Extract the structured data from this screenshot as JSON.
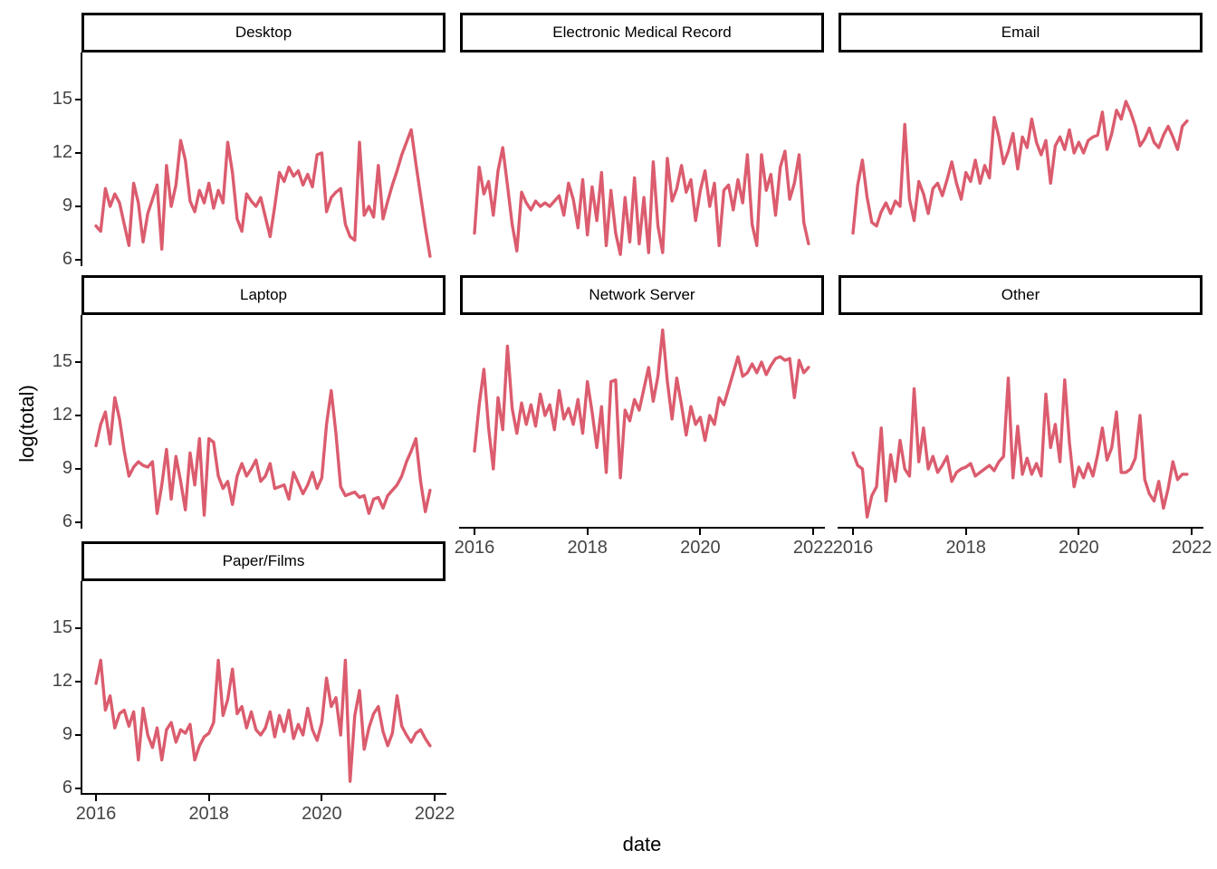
{
  "figure": {
    "y_axis_title": "log(total)",
    "x_axis_title": "date",
    "line_color": "#DB5C6E",
    "axis_text_color": "#444444",
    "axis_line_color": "#000000",
    "strip_text_color": "#000000",
    "background_color": "#FFFFFF"
  },
  "chart_data": {
    "type": "line",
    "title": "",
    "xlabel": "date",
    "ylabel": "log(total)",
    "x_start": "2016-01",
    "x_end": "2021-12",
    "x_frequency": "monthly",
    "n_points": 72,
    "x_tick_labels": [
      "2016",
      "2018",
      "2020",
      "2022"
    ],
    "y_ticks": [
      15,
      12,
      9,
      6
    ],
    "ylim": [
      5.5,
      17.6
    ],
    "grid": false,
    "legend": "none",
    "facet_layout": {
      "rows": 3,
      "cols": 3,
      "order": "row-major"
    },
    "facets": [
      {
        "label": "Desktop",
        "values": [
          7.9,
          7.6,
          10.0,
          9.0,
          9.7,
          9.2,
          8.0,
          6.8,
          10.3,
          9.2,
          7.0,
          8.6,
          9.4,
          10.2,
          6.6,
          11.3,
          9.0,
          10.2,
          12.7,
          11.6,
          9.3,
          8.7,
          9.9,
          9.2,
          10.3,
          8.9,
          9.9,
          9.2,
          12.6,
          10.9,
          8.3,
          7.6,
          9.7,
          9.3,
          9.0,
          9.5,
          8.4,
          7.3,
          9.0,
          10.9,
          10.4,
          11.2,
          10.7,
          11.0,
          10.2,
          10.8,
          10.1,
          11.9,
          12.0,
          8.7,
          9.5,
          9.8,
          10.0,
          8.0,
          7.3,
          7.1,
          12.6,
          8.5,
          9.0,
          8.4,
          11.3,
          8.3,
          9.3,
          10.2,
          11.0,
          11.9,
          12.6,
          13.3,
          11.4,
          9.6,
          7.8,
          6.2
        ]
      },
      {
        "label": "Electronic Medical Record",
        "values": [
          7.5,
          11.2,
          9.7,
          10.4,
          8.5,
          11.0,
          12.3,
          10.2,
          8.0,
          6.5,
          9.8,
          9.2,
          8.8,
          9.3,
          9.0,
          9.2,
          9.0,
          9.3,
          9.6,
          8.5,
          10.3,
          9.4,
          7.8,
          10.5,
          7.4,
          10.1,
          8.2,
          10.9,
          6.8,
          9.9,
          7.5,
          6.3,
          9.5,
          7.0,
          10.6,
          6.9,
          9.5,
          6.4,
          11.5,
          7.9,
          6.4,
          11.7,
          9.3,
          10.0,
          11.3,
          9.8,
          10.5,
          8.2,
          9.9,
          11.0,
          9.0,
          10.3,
          6.8,
          9.9,
          10.2,
          8.8,
          10.5,
          9.2,
          11.9,
          8.0,
          6.8,
          11.9,
          9.9,
          10.8,
          8.5,
          11.2,
          12.1,
          9.4,
          10.3,
          11.9,
          8.1,
          6.9
        ]
      },
      {
        "label": "Email",
        "values": [
          7.5,
          10.2,
          11.6,
          9.5,
          8.1,
          7.9,
          8.7,
          9.2,
          8.6,
          9.3,
          9.0,
          13.6,
          9.4,
          8.2,
          10.4,
          9.7,
          8.6,
          10.0,
          10.3,
          9.6,
          10.5,
          11.5,
          10.3,
          9.4,
          10.9,
          10.4,
          11.6,
          10.3,
          11.3,
          10.6,
          14.0,
          12.9,
          11.4,
          12.1,
          13.1,
          11.1,
          12.9,
          12.3,
          13.9,
          12.6,
          11.9,
          12.7,
          10.3,
          12.4,
          12.9,
          12.2,
          13.3,
          12.0,
          12.6,
          12.0,
          12.7,
          12.9,
          13.0,
          14.3,
          12.2,
          13.1,
          14.4,
          13.9,
          14.9,
          14.3,
          13.5,
          12.4,
          12.8,
          13.4,
          12.6,
          12.3,
          13.0,
          13.5,
          12.9,
          12.2,
          13.5,
          13.8
        ]
      },
      {
        "label": "Laptop",
        "values": [
          10.3,
          11.5,
          12.2,
          10.4,
          13.0,
          11.8,
          10.0,
          8.6,
          9.1,
          9.4,
          9.2,
          9.1,
          9.4,
          6.5,
          8.1,
          10.1,
          7.3,
          9.7,
          8.3,
          6.7,
          9.9,
          8.1,
          10.7,
          6.4,
          10.7,
          10.5,
          8.6,
          7.9,
          8.3,
          7.0,
          8.6,
          9.3,
          8.6,
          9.0,
          9.5,
          8.3,
          8.6,
          9.3,
          7.9,
          8.0,
          8.1,
          7.3,
          8.8,
          8.2,
          7.6,
          8.1,
          8.8,
          7.9,
          8.5,
          11.5,
          13.4,
          11.0,
          8.0,
          7.5,
          7.6,
          7.7,
          7.4,
          7.5,
          6.5,
          7.3,
          7.4,
          6.8,
          7.5,
          7.8,
          8.1,
          8.6,
          9.4,
          10.0,
          10.7,
          8.3,
          6.6,
          7.8
        ]
      },
      {
        "label": "Network Server",
        "values": [
          10.0,
          12.6,
          14.6,
          11.3,
          9.0,
          13.0,
          11.2,
          15.9,
          12.4,
          11.0,
          12.7,
          11.5,
          12.6,
          11.4,
          13.2,
          12.0,
          12.6,
          11.2,
          13.4,
          11.8,
          12.4,
          11.5,
          12.9,
          11.0,
          13.9,
          12.2,
          10.2,
          12.5,
          8.8,
          13.9,
          14.0,
          8.5,
          12.3,
          11.7,
          12.9,
          12.3,
          13.5,
          14.7,
          12.8,
          14.2,
          16.8,
          13.9,
          11.8,
          14.1,
          12.6,
          10.9,
          12.5,
          11.5,
          11.9,
          10.6,
          12.0,
          11.5,
          13.0,
          12.6,
          13.5,
          14.4,
          15.3,
          14.2,
          14.4,
          14.9,
          14.4,
          15.0,
          14.3,
          14.8,
          15.2,
          15.3,
          15.1,
          15.2,
          13.0,
          15.1,
          14.4,
          14.7
        ]
      },
      {
        "label": "Other",
        "values": [
          9.9,
          9.2,
          9.0,
          6.3,
          7.5,
          8.0,
          11.3,
          7.2,
          9.8,
          8.3,
          10.6,
          9.0,
          8.6,
          13.5,
          9.4,
          11.3,
          9.0,
          9.7,
          8.8,
          9.2,
          9.7,
          8.3,
          8.8,
          9.0,
          9.1,
          9.3,
          8.6,
          8.8,
          9.0,
          9.2,
          8.9,
          9.4,
          9.7,
          14.1,
          8.5,
          11.4,
          8.7,
          9.6,
          8.7,
          9.3,
          8.6,
          13.2,
          10.2,
          11.5,
          9.4,
          14.0,
          10.5,
          8.0,
          9.1,
          8.5,
          9.3,
          8.6,
          9.8,
          11.3,
          9.5,
          10.2,
          12.2,
          8.8,
          8.8,
          9.0,
          9.6,
          12.0,
          8.4,
          7.6,
          7.2,
          8.3,
          6.8,
          7.9,
          9.4,
          8.4,
          8.7,
          8.7
        ]
      },
      {
        "label": "Paper/Films",
        "values": [
          11.9,
          13.2,
          10.4,
          11.2,
          9.4,
          10.2,
          10.4,
          9.5,
          10.3,
          7.6,
          10.5,
          9.0,
          8.3,
          9.4,
          7.6,
          9.3,
          9.7,
          8.6,
          9.3,
          9.1,
          9.6,
          7.6,
          8.4,
          8.9,
          9.1,
          9.7,
          13.2,
          10.1,
          11.0,
          12.7,
          10.2,
          10.6,
          9.4,
          10.3,
          9.3,
          9.0,
          9.4,
          10.3,
          8.9,
          10.1,
          9.2,
          10.4,
          8.8,
          9.6,
          9.0,
          10.5,
          9.3,
          8.7,
          9.7,
          12.2,
          10.6,
          11.1,
          9.0,
          13.2,
          6.4,
          10.1,
          11.5,
          8.2,
          9.4,
          10.2,
          10.6,
          9.2,
          8.4,
          9.1,
          11.2,
          9.5,
          9.0,
          8.6,
          9.1,
          9.3,
          8.8,
          8.4
        ]
      }
    ]
  }
}
